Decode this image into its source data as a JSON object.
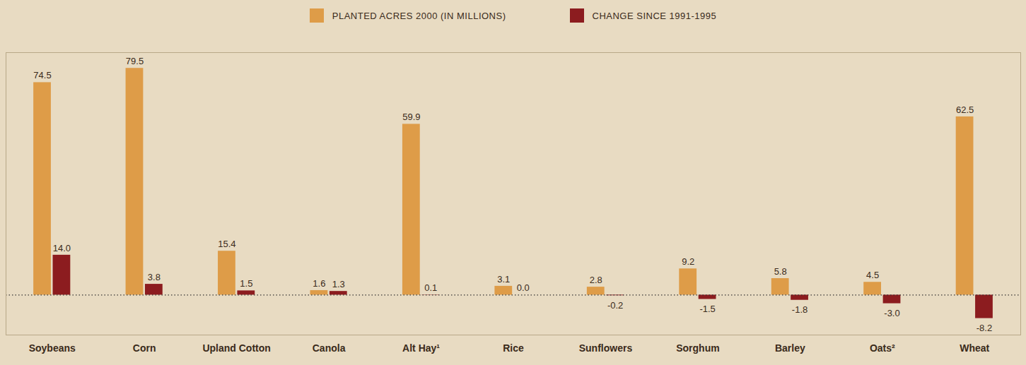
{
  "chart_data": {
    "type": "bar",
    "categories": [
      "Soybeans",
      "Corn",
      "Upland Cotton",
      "Canola",
      "Alt Hay¹",
      "Rice",
      "Sunflowers",
      "Sorghum",
      "Barley",
      "Oats²",
      "Wheat"
    ],
    "series": [
      {
        "name": "PLANTED ACRES 2000 (IN MILLIONS)",
        "color": "#de9c48",
        "values": [
          74.5,
          79.5,
          15.4,
          1.6,
          59.9,
          3.1,
          2.8,
          9.2,
          5.8,
          4.5,
          62.5
        ],
        "value_labels": [
          "74.5",
          "79.5",
          "15.4",
          "1.6",
          "59.9",
          "3.1",
          "2.8",
          "9.2",
          "5.8",
          "4.5",
          "62.5"
        ]
      },
      {
        "name": "CHANGE SINCE 1991-1995",
        "color": "#8c1c1f",
        "values": [
          14.0,
          3.8,
          1.5,
          1.3,
          0.1,
          0.0,
          -0.2,
          -1.5,
          -1.8,
          -3.0,
          -8.2
        ],
        "value_labels": [
          "14.0",
          "3.8",
          "1.5",
          "1.3",
          "0.1",
          "0.0",
          "-0.2",
          "-1.5",
          "-1.8",
          "-3.0",
          "-8.2"
        ]
      }
    ],
    "ylim": [
      -14,
      85
    ],
    "data_labels": true,
    "tick_labels": "x",
    "legend": "top",
    "grid": false
  }
}
